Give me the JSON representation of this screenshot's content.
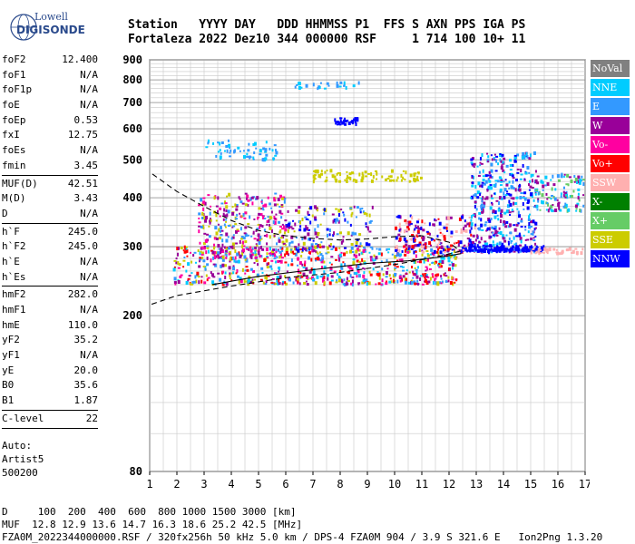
{
  "logo": {
    "line1": "Lowell",
    "line2": "DIGISONDE"
  },
  "header": {
    "labels": "Station   YYYY DAY   DDD HHMMSS P1  FFS S AXN PPS IGA PS",
    "values": "Fortaleza 2022 Dez10 344 000000 RSF     1 714 100 10+ 11"
  },
  "params": {
    "g1": [
      {
        "k": "foF2",
        "v": "12.400"
      },
      {
        "k": "foF1",
        "v": "N/A"
      },
      {
        "k": "foF1p",
        "v": "N/A"
      },
      {
        "k": "foE",
        "v": "N/A"
      },
      {
        "k": "foEp",
        "v": "0.53"
      },
      {
        "k": "fxI",
        "v": "12.75"
      },
      {
        "k": "foEs",
        "v": "N/A"
      },
      {
        "k": "fmin",
        "v": "3.45"
      }
    ],
    "g2": [
      {
        "k": "MUF(D)",
        "v": "42.51"
      },
      {
        "k": "M(D)",
        "v": "3.43"
      },
      {
        "k": "D",
        "v": "N/A"
      }
    ],
    "g3": [
      {
        "k": "h`F",
        "v": "245.0"
      },
      {
        "k": "h`F2",
        "v": "245.0"
      },
      {
        "k": "h`E",
        "v": "N/A"
      },
      {
        "k": "h`Es",
        "v": "N/A"
      }
    ],
    "g4": [
      {
        "k": "hmF2",
        "v": "282.0"
      },
      {
        "k": "hmF1",
        "v": "N/A"
      },
      {
        "k": "hmE",
        "v": "110.0"
      },
      {
        "k": "yF2",
        "v": "35.2"
      },
      {
        "k": "yF1",
        "v": "N/A"
      },
      {
        "k": "yE",
        "v": "20.0"
      },
      {
        "k": "B0",
        "v": "35.6"
      },
      {
        "k": "B1",
        "v": "1.87"
      }
    ],
    "g5": [
      {
        "k": "C-level",
        "v": "22"
      }
    ]
  },
  "auto": {
    "l1": "Auto:",
    "l2": "Artist5",
    "l3": "500200"
  },
  "legend": [
    {
      "label": "NoVal",
      "color": "#808080"
    },
    {
      "label": "NNE",
      "color": "#00ccff"
    },
    {
      "label": "E",
      "color": "#3399ff"
    },
    {
      "label": "W",
      "color": "#990099"
    },
    {
      "label": "Vo-",
      "color": "#ff00a0"
    },
    {
      "label": "Vo+",
      "color": "#ff0000"
    },
    {
      "label": "SSW",
      "color": "#ffb0b0"
    },
    {
      "label": "X-",
      "color": "#008000"
    },
    {
      "label": "X+",
      "color": "#66cc66"
    },
    {
      "label": "SSE",
      "color": "#cccc00"
    },
    {
      "label": "NNW",
      "color": "#0000ff"
    }
  ],
  "bottom": {
    "line1": "D     100  200  400  600  800 1000 1500 3000 [km]",
    "line2": "MUF  12.8 12.9 13.6 14.7 16.3 18.6 25.2 42.5 [MHz]",
    "line3": "FZA0M_2022344000000.RSF / 320fx256h 50 kHz 5.0 km / DPS-4 FZA0M 904 / 3.9 S 321.6 E   Ion2Png 1.3.20"
  },
  "chart_data": {
    "type": "scatter",
    "title": "",
    "xlabel": "",
    "ylabel": "",
    "xlim": [
      1,
      17
    ],
    "ylim": [
      80,
      900
    ],
    "x_ticks": [
      1,
      2,
      3,
      4,
      5,
      6,
      7,
      8,
      9,
      10,
      11,
      12,
      13,
      14,
      15,
      16,
      17
    ],
    "y_ticks": [
      80,
      200,
      300,
      400,
      500,
      600,
      700,
      800,
      900
    ],
    "y_scale": "log",
    "grid": true,
    "clusters": [
      {
        "name": "F-trace low",
        "x_from": 1.9,
        "x_to": 12.3,
        "y_from": 240,
        "y_to": 300,
        "colors": [
          "#ff0000",
          "#ff00a0",
          "#00ccff",
          "#3399ff",
          "#cccc00",
          "#990099"
        ],
        "count": 700
      },
      {
        "name": "spread F",
        "x_from": 2.8,
        "x_to": 6.0,
        "y_from": 280,
        "y_to": 410,
        "colors": [
          "#990099",
          "#ff00a0",
          "#cccc00",
          "#3399ff"
        ],
        "count": 320
      },
      {
        "name": "mid spread",
        "x_from": 6.0,
        "x_to": 9.2,
        "y_from": 290,
        "y_to": 380,
        "colors": [
          "#990099",
          "#cccc00",
          "#3399ff",
          "#0000ff"
        ],
        "count": 160
      },
      {
        "name": "SSE blob",
        "x_from": 7.0,
        "x_to": 11.0,
        "y_from": 440,
        "y_to": 470,
        "colors": [
          "#cccc00"
        ],
        "count": 90
      },
      {
        "name": "high freq",
        "x_from": 10.0,
        "x_to": 13.0,
        "y_from": 290,
        "y_to": 360,
        "colors": [
          "#ff0000",
          "#0000ff",
          "#990099",
          "#ffb0b0"
        ],
        "count": 200
      },
      {
        "name": "13-15 region",
        "x_from": 12.8,
        "x_to": 15.2,
        "y_from": 290,
        "y_to": 520,
        "colors": [
          "#00ccff",
          "#3399ff",
          "#0000ff",
          "#990099"
        ],
        "count": 420
      },
      {
        "name": "NNW band",
        "x_from": 12.5,
        "x_to": 15.5,
        "y_from": 292,
        "y_to": 302,
        "colors": [
          "#0000ff"
        ],
        "count": 140
      },
      {
        "name": "15-17 region",
        "x_from": 15.2,
        "x_to": 17.0,
        "y_from": 370,
        "y_to": 460,
        "colors": [
          "#990099",
          "#3399ff",
          "#00ccff",
          "#66cc66"
        ],
        "count": 110
      },
      {
        "name": "SSW tail",
        "x_from": 15.0,
        "x_to": 17.0,
        "y_from": 288,
        "y_to": 296,
        "colors": [
          "#ffb0b0"
        ],
        "count": 40
      },
      {
        "name": "E oblique",
        "x_from": 3.0,
        "x_to": 5.7,
        "y_from": 500,
        "y_to": 560,
        "colors": [
          "#3399ff",
          "#00ccff"
        ],
        "count": 60
      },
      {
        "name": "NNW 620",
        "x_from": 7.8,
        "x_to": 8.7,
        "y_from": 615,
        "y_to": 640,
        "colors": [
          "#0000ff"
        ],
        "count": 30
      },
      {
        "name": "sparse high",
        "x_from": 6.0,
        "x_to": 9.0,
        "y_from": 760,
        "y_to": 790,
        "colors": [
          "#3399ff",
          "#00ccff"
        ],
        "count": 25
      }
    ],
    "curves": [
      {
        "name": "profile-dashed",
        "style": "dashed",
        "points": [
          [
            1.1,
            460
          ],
          [
            2,
            415
          ],
          [
            3,
            380
          ],
          [
            4,
            350
          ],
          [
            5,
            330
          ],
          [
            6,
            320
          ],
          [
            7,
            315
          ],
          [
            8,
            312
          ],
          [
            9,
            314
          ],
          [
            10,
            318
          ],
          [
            11,
            320
          ],
          [
            12,
            308
          ],
          [
            12.4,
            292
          ],
          [
            11.5,
            282
          ],
          [
            10,
            270
          ],
          [
            8,
            258
          ],
          [
            6,
            250
          ],
          [
            4,
            238
          ],
          [
            2,
            225
          ],
          [
            1,
            213
          ]
        ]
      },
      {
        "name": "profile-solid",
        "style": "solid",
        "points": [
          [
            3.3,
            240
          ],
          [
            5,
            252
          ],
          [
            7,
            262
          ],
          [
            9,
            272
          ],
          [
            10.5,
            276
          ],
          [
            11.8,
            283
          ],
          [
            12.45,
            288
          ]
        ]
      }
    ]
  }
}
